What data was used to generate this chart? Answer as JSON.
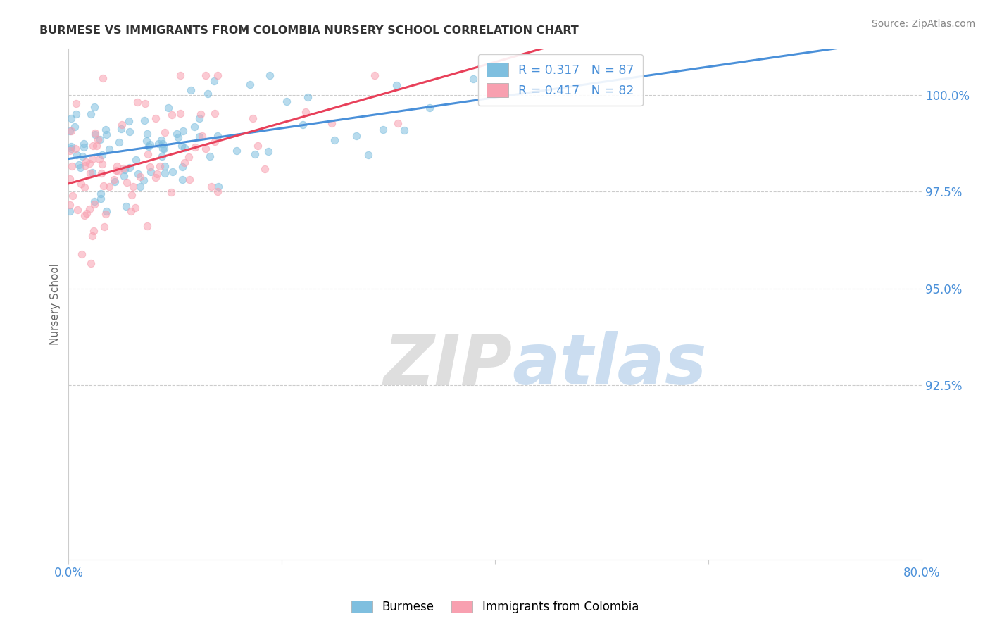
{
  "title": "BURMESE VS IMMIGRANTS FROM COLOMBIA NURSERY SCHOOL CORRELATION CHART",
  "source": "Source: ZipAtlas.com",
  "ylabel": "Nursery School",
  "ytick_values": [
    92.5,
    95.0,
    97.5,
    100.0
  ],
  "xlim": [
    0.0,
    80.0
  ],
  "ylim": [
    88.0,
    101.2
  ],
  "legend_blue_label": "Burmese",
  "legend_pink_label": "Immigrants from Colombia",
  "legend_blue_R": "R = 0.317",
  "legend_blue_N": "N = 87",
  "legend_pink_R": "R = 0.417",
  "legend_pink_N": "N = 82",
  "blue_color": "#7fbfdf",
  "pink_color": "#f8a0b0",
  "trendline_blue": "#4a90d9",
  "trendline_pink": "#e8405a",
  "watermark_zip": "ZIP",
  "watermark_atlas": "atlas",
  "background_color": "#ffffff",
  "scatter_alpha": 0.55,
  "scatter_size": 55,
  "grid_color": "#cccccc",
  "tick_color": "#4a90d9",
  "title_color": "#333333",
  "source_color": "#888888"
}
